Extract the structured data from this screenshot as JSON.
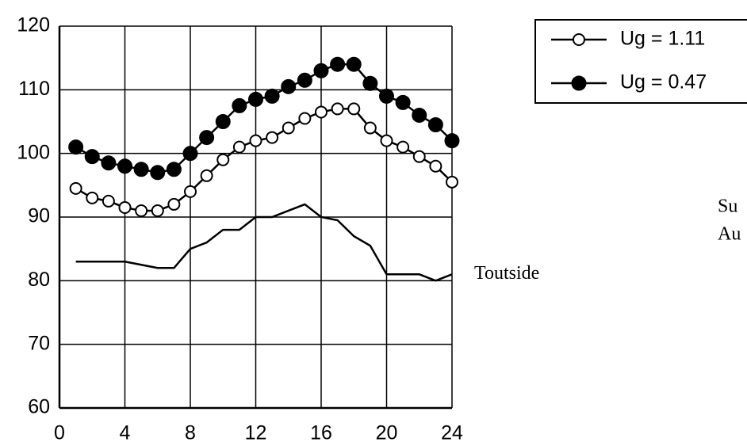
{
  "chart_data": {
    "type": "line",
    "x": [
      1,
      2,
      3,
      4,
      5,
      6,
      7,
      8,
      9,
      10,
      11,
      12,
      13,
      14,
      15,
      16,
      17,
      18,
      19,
      20,
      21,
      22,
      23,
      24
    ],
    "series": [
      {
        "name": "Ug = 1.11",
        "color": "#000000",
        "marker": "open",
        "in_legend": true,
        "values": [
          94.5,
          93,
          92.5,
          91.5,
          91,
          91,
          92,
          94,
          96.5,
          99,
          101,
          102,
          102.5,
          104,
          105.5,
          106.5,
          107,
          107,
          104,
          102,
          101,
          99.5,
          98,
          95.5
        ]
      },
      {
        "name": "Ug = 0.47",
        "color": "#000000",
        "marker": "filled",
        "in_legend": true,
        "values": [
          101,
          99.5,
          98.5,
          98,
          97.5,
          97,
          97.5,
          100,
          102.5,
          105,
          107.5,
          108.5,
          109,
          110.5,
          111.5,
          113,
          114,
          114,
          111,
          109,
          108,
          106,
          104.5,
          102
        ]
      },
      {
        "name": "Toutside",
        "color": "#000000",
        "marker": "none",
        "in_legend": false,
        "values": [
          83,
          83,
          83,
          83,
          82.5,
          82,
          82,
          85,
          86,
          88,
          88,
          90,
          90,
          91,
          92,
          90,
          89.5,
          87,
          85.5,
          81,
          81,
          81,
          80,
          81
        ]
      }
    ],
    "xlim": [
      0,
      24
    ],
    "xticks": [
      0,
      4,
      8,
      12,
      16,
      20,
      24
    ],
    "ylim": [
      60,
      120
    ],
    "yticks": [
      60,
      70,
      80,
      90,
      100,
      110,
      120
    ],
    "grid": true,
    "legend": "top-right",
    "annotations": [
      "Su",
      "Au"
    ]
  }
}
